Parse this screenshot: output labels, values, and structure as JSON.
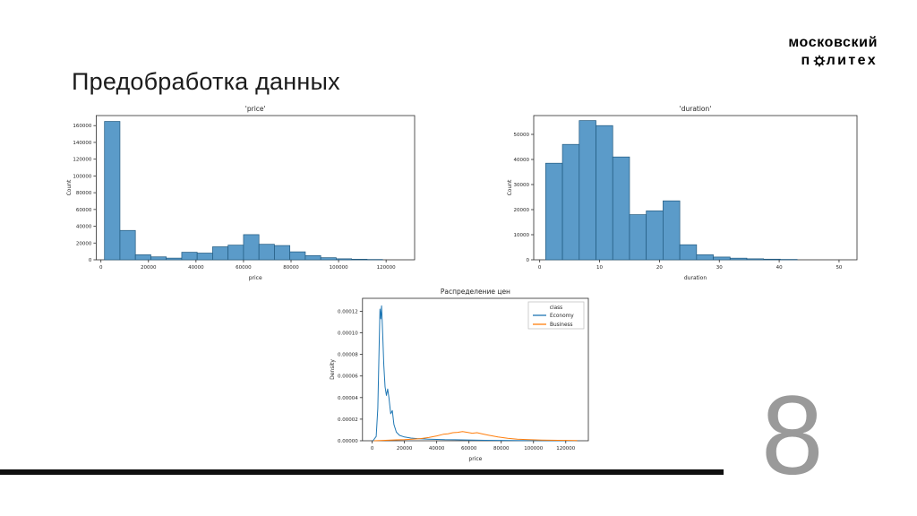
{
  "slide": {
    "title": "Предобработка данных",
    "page_number": "8",
    "logo": {
      "line1": "московский",
      "line2_prefix": "п",
      "line2_suffix": "литех",
      "icon": "gear-icon"
    }
  },
  "chart_data": [
    {
      "type": "bar",
      "title": "'price'",
      "xlabel": "price",
      "ylabel": "Count",
      "xlim": [
        -2000,
        132000
      ],
      "ylim": [
        0,
        172000
      ],
      "xticks": [
        0,
        20000,
        40000,
        60000,
        80000,
        100000,
        120000
      ],
      "xtick_labels": [
        "0",
        "20000",
        "40000",
        "60000",
        "80000",
        "100000",
        "120000"
      ],
      "yticks": [
        0,
        20000,
        40000,
        60000,
        80000,
        100000,
        120000,
        140000,
        160000
      ],
      "ytick_labels": [
        "0",
        "20000",
        "40000",
        "60000",
        "80000",
        "100000",
        "120000",
        "140000",
        "160000"
      ],
      "bins_start": 1500,
      "bin_width": 6500,
      "values": [
        165000,
        35000,
        6000,
        3500,
        2000,
        9000,
        8000,
        15500,
        17500,
        30000,
        18500,
        17000,
        9500,
        5000,
        2500,
        1200,
        700,
        400
      ],
      "bar_color": "#5b9bc9",
      "bar_edge": "#20597f"
    },
    {
      "type": "bar",
      "title": "'duration'",
      "xlabel": "duration",
      "ylabel": "Count",
      "xlim": [
        -1,
        53
      ],
      "ylim": [
        0,
        57500
      ],
      "xticks": [
        0,
        10,
        20,
        30,
        40,
        50
      ],
      "xtick_labels": [
        "0",
        "10",
        "20",
        "30",
        "40",
        "50"
      ],
      "yticks": [
        0,
        10000,
        20000,
        30000,
        40000,
        50000
      ],
      "ytick_labels": [
        "0",
        "10000",
        "20000",
        "30000",
        "40000",
        "50000"
      ],
      "bins_start": 1,
      "bin_width": 2.8,
      "values": [
        38500,
        46000,
        55500,
        53500,
        41000,
        18000,
        19500,
        23500,
        6000,
        2000,
        1100,
        650,
        400,
        250,
        150
      ],
      "bar_color": "#5b9bc9",
      "bar_edge": "#20597f"
    },
    {
      "type": "line",
      "title": "Распределение цен",
      "xlabel": "price",
      "ylabel": "Density",
      "xlim": [
        -6000,
        134000
      ],
      "ylim": [
        0,
        0.000132
      ],
      "xticks": [
        0,
        20000,
        40000,
        60000,
        80000,
        100000,
        120000
      ],
      "xtick_labels": [
        "0",
        "20000",
        "40000",
        "60000",
        "80000",
        "100000",
        "120000"
      ],
      "yticks": [
        0,
        2e-05,
        4e-05,
        6e-05,
        8e-05,
        0.0001,
        0.00012
      ],
      "ytick_labels": [
        "0.00000",
        "0.00002",
        "0.00004",
        "0.00006",
        "0.00008",
        "0.00010",
        "0.00012"
      ],
      "legend": {
        "title": "class",
        "entries": [
          {
            "label": "Economy",
            "color": "#1f77b4"
          },
          {
            "label": "Business",
            "color": "#ff7f0e"
          }
        ]
      },
      "series": [
        {
          "name": "Economy",
          "color": "#1f77b4",
          "points": [
            [
              500,
              0
            ],
            [
              2500,
              4e-06
            ],
            [
              3500,
              3e-05
            ],
            [
              4200,
              8e-05
            ],
            [
              4800,
              0.000122
            ],
            [
              5300,
              0.000113
            ],
            [
              5800,
              0.000125
            ],
            [
              6500,
              0.0001
            ],
            [
              7200,
              7e-05
            ],
            [
              8000,
              5e-05
            ],
            [
              8800,
              4.2e-05
            ],
            [
              9600,
              4.8e-05
            ],
            [
              10400,
              4e-05
            ],
            [
              11500,
              2.5e-05
            ],
            [
              12500,
              2.8e-05
            ],
            [
              13500,
              1.5e-05
            ],
            [
              15000,
              8e-06
            ],
            [
              17000,
              5e-06
            ],
            [
              20000,
              3.5e-06
            ],
            [
              24000,
              2.5e-06
            ],
            [
              28000,
              2e-06
            ],
            [
              35000,
              1.5e-06
            ],
            [
              45000,
              1e-06
            ],
            [
              55000,
              8e-07
            ],
            [
              70000,
              4e-07
            ],
            [
              90000,
              2e-07
            ],
            [
              110000,
              1e-07
            ],
            [
              126000,
              0
            ]
          ]
        },
        {
          "name": "Business",
          "color": "#ff7f0e",
          "points": [
            [
              1000,
              0
            ],
            [
              5000,
              2e-07
            ],
            [
              10000,
              5e-07
            ],
            [
              15000,
              8e-07
            ],
            [
              20000,
              1e-06
            ],
            [
              25000,
              1.5e-06
            ],
            [
              30000,
              2e-06
            ],
            [
              35000,
              3e-06
            ],
            [
              40000,
              4.5e-06
            ],
            [
              44000,
              6e-06
            ],
            [
              47000,
              6.5e-06
            ],
            [
              50000,
              7.5e-06
            ],
            [
              53000,
              7.8e-06
            ],
            [
              56000,
              8.5e-06
            ],
            [
              59000,
              7.8e-06
            ],
            [
              62000,
              7e-06
            ],
            [
              65000,
              7.5e-06
            ],
            [
              68000,
              6.5e-06
            ],
            [
              72000,
              5.2e-06
            ],
            [
              78000,
              3.5e-06
            ],
            [
              84000,
              2.2e-06
            ],
            [
              90000,
              1.5e-06
            ],
            [
              97000,
              1e-06
            ],
            [
              105000,
              7e-07
            ],
            [
              115000,
              4e-07
            ],
            [
              127000,
              2e-07
            ]
          ]
        }
      ]
    }
  ]
}
